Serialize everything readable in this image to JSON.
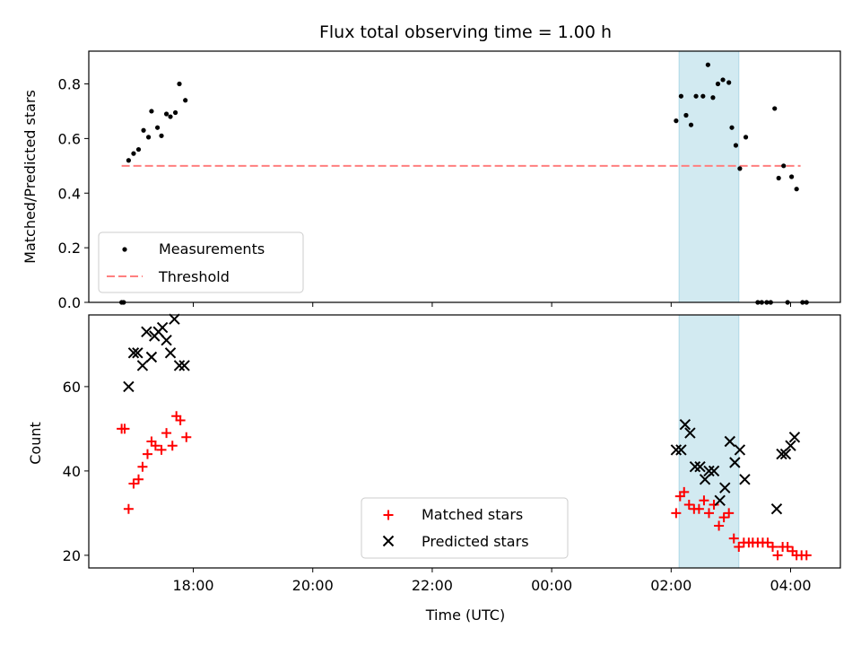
{
  "chart_data": [
    {
      "type": "scatter",
      "title": "Flux total observing time = 1.00 h",
      "ylabel": "Matched/Predicted stars",
      "xlabel": "",
      "ylim": [
        0,
        0.92
      ],
      "xlim": [
        "16:15",
        "04:50"
      ],
      "x_ticks": [
        "18:00",
        "20:00",
        "22:00",
        "00:00",
        "02:00",
        "04:00"
      ],
      "y_ticks": [
        "0.0",
        "0.2",
        "0.4",
        "0.6",
        "0.8"
      ],
      "grid": false,
      "legend_position": "lower-left",
      "highlight_band": {
        "x_start": "02:08",
        "x_end": "03:08",
        "color": "#add8e6"
      },
      "threshold": {
        "name": "Threshold",
        "value": 0.5,
        "x_start": "16:48",
        "x_end": "04:10",
        "color": "#ff7f7f"
      },
      "series": [
        {
          "name": "Measurements",
          "color": "#000000",
          "marker": "dot",
          "points": [
            [
              "16:48",
              0.0
            ],
            [
              "16:50",
              0.0
            ],
            [
              "16:55",
              0.52
            ],
            [
              "17:00",
              0.545
            ],
            [
              "17:05",
              0.56
            ],
            [
              "17:10",
              0.63
            ],
            [
              "17:15",
              0.605
            ],
            [
              "17:18",
              0.7
            ],
            [
              "17:24",
              0.64
            ],
            [
              "17:28",
              0.61
            ],
            [
              "17:33",
              0.69
            ],
            [
              "17:37",
              0.68
            ],
            [
              "17:42",
              0.695
            ],
            [
              "17:46",
              0.8
            ],
            [
              "17:52",
              0.74
            ],
            [
              "02:05",
              0.665
            ],
            [
              "02:10",
              0.755
            ],
            [
              "02:15",
              0.685
            ],
            [
              "02:20",
              0.65
            ],
            [
              "02:25",
              0.755
            ],
            [
              "02:32",
              0.755
            ],
            [
              "02:37",
              0.87
            ],
            [
              "02:42",
              0.75
            ],
            [
              "02:47",
              0.8
            ],
            [
              "02:52",
              0.815
            ],
            [
              "02:58",
              0.805
            ],
            [
              "03:01",
              0.64
            ],
            [
              "03:05",
              0.575
            ],
            [
              "03:09",
              0.49
            ],
            [
              "03:15",
              0.605
            ],
            [
              "03:27",
              0.0
            ],
            [
              "03:31",
              0.0
            ],
            [
              "03:36",
              0.0
            ],
            [
              "03:40",
              0.0
            ],
            [
              "03:44",
              0.71
            ],
            [
              "03:48",
              0.455
            ],
            [
              "03:53",
              0.5
            ],
            [
              "03:57",
              0.0
            ],
            [
              "04:01",
              0.46
            ],
            [
              "04:06",
              0.415
            ],
            [
              "04:12",
              0.0
            ],
            [
              "04:16",
              0.0
            ]
          ]
        }
      ]
    },
    {
      "type": "scatter",
      "title": "",
      "xlabel": "Time (UTC)",
      "ylabel": "Count",
      "ylim": [
        17,
        77
      ],
      "xlim": [
        "16:15",
        "04:50"
      ],
      "x_ticks": [
        "18:00",
        "20:00",
        "22:00",
        "00:00",
        "02:00",
        "04:00"
      ],
      "y_ticks": [
        "20",
        "40",
        "60"
      ],
      "grid": false,
      "legend_position": "lower-center",
      "highlight_band": {
        "x_start": "02:08",
        "x_end": "03:08",
        "color": "#add8e6"
      },
      "series": [
        {
          "name": "Matched stars",
          "color": "#ff0000",
          "marker": "plus",
          "points": [
            [
              "16:48",
              50
            ],
            [
              "16:51",
              50
            ],
            [
              "16:55",
              31
            ],
            [
              "17:00",
              37
            ],
            [
              "17:05",
              38
            ],
            [
              "17:09",
              41
            ],
            [
              "17:14",
              44
            ],
            [
              "17:18",
              47
            ],
            [
              "17:22",
              46
            ],
            [
              "17:28",
              45
            ],
            [
              "17:33",
              49
            ],
            [
              "17:39",
              46
            ],
            [
              "17:43",
              53
            ],
            [
              "17:47",
              52
            ],
            [
              "17:53",
              48
            ],
            [
              "02:05",
              30
            ],
            [
              "02:09",
              34
            ],
            [
              "02:13",
              35
            ],
            [
              "02:18",
              32
            ],
            [
              "02:23",
              31
            ],
            [
              "02:28",
              31
            ],
            [
              "02:33",
              33
            ],
            [
              "02:38",
              30
            ],
            [
              "02:43",
              32
            ],
            [
              "02:48",
              27
            ],
            [
              "02:53",
              29
            ],
            [
              "02:58",
              30
            ],
            [
              "03:03",
              24
            ],
            [
              "03:08",
              22
            ],
            [
              "03:13",
              23
            ],
            [
              "03:18",
              23
            ],
            [
              "03:22",
              23
            ],
            [
              "03:27",
              23
            ],
            [
              "03:32",
              23
            ],
            [
              "03:37",
              23
            ],
            [
              "03:42",
              22
            ],
            [
              "03:47",
              20
            ],
            [
              "03:52",
              22
            ],
            [
              "03:57",
              22
            ],
            [
              "04:02",
              21
            ],
            [
              "04:06",
              20
            ],
            [
              "04:11",
              20
            ],
            [
              "04:16",
              20
            ]
          ]
        },
        {
          "name": "Predicted stars",
          "color": "#000000",
          "marker": "x",
          "points": [
            [
              "16:55",
              60
            ],
            [
              "17:00",
              68
            ],
            [
              "17:04",
              68
            ],
            [
              "17:09",
              65
            ],
            [
              "17:13",
              73
            ],
            [
              "17:18",
              67
            ],
            [
              "17:21",
              72
            ],
            [
              "17:25",
              73
            ],
            [
              "17:29",
              74
            ],
            [
              "17:33",
              71
            ],
            [
              "17:37",
              68
            ],
            [
              "17:41",
              76
            ],
            [
              "17:46",
              65
            ],
            [
              "17:51",
              65
            ],
            [
              "02:05",
              45
            ],
            [
              "02:10",
              45
            ],
            [
              "02:14",
              51
            ],
            [
              "02:19",
              49
            ],
            [
              "02:24",
              41
            ],
            [
              "02:29",
              41
            ],
            [
              "02:34",
              38
            ],
            [
              "02:38",
              40
            ],
            [
              "02:43",
              40
            ],
            [
              "02:49",
              33
            ],
            [
              "02:54",
              36
            ],
            [
              "02:59",
              47
            ],
            [
              "03:04",
              42
            ],
            [
              "03:09",
              45
            ],
            [
              "03:14",
              38
            ],
            [
              "03:46",
              31
            ],
            [
              "03:51",
              44
            ],
            [
              "03:55",
              44
            ],
            [
              "04:00",
              46
            ],
            [
              "04:04",
              48
            ]
          ]
        }
      ]
    }
  ]
}
